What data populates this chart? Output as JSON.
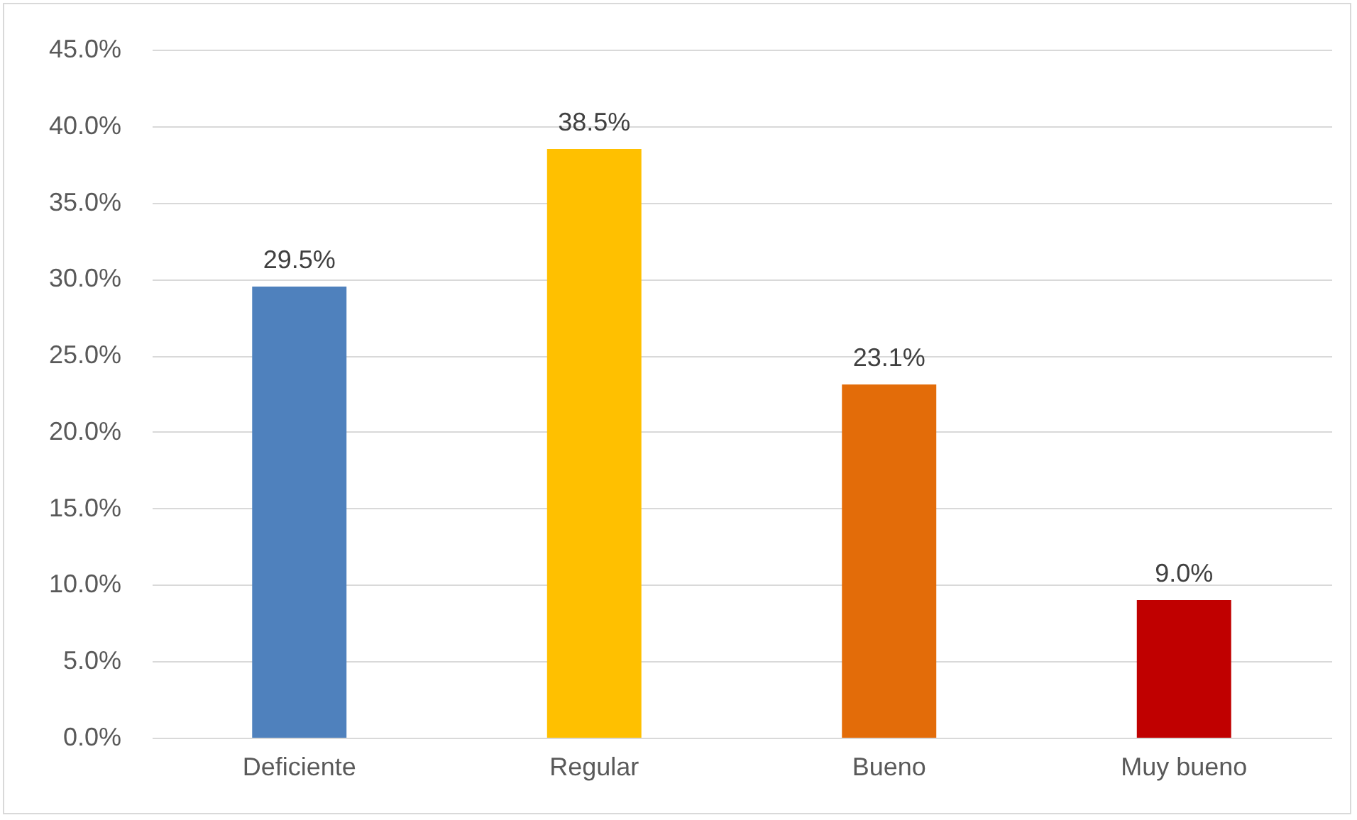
{
  "chart_data": {
    "type": "bar",
    "categories": [
      "Deficiente",
      "Regular",
      "Bueno",
      "Muy bueno"
    ],
    "values": [
      29.5,
      38.5,
      23.1,
      9.0
    ],
    "colors": [
      "#4f81bd",
      "#ffc000",
      "#e36c09",
      "#c00000"
    ],
    "value_labels": [
      "29.5%",
      "38.5%",
      "23.1%",
      "9.0%"
    ],
    "ylim": [
      0,
      45
    ],
    "yticks": [
      {
        "value": 0,
        "label": "0.0%"
      },
      {
        "value": 5,
        "label": "5.0%"
      },
      {
        "value": 10,
        "label": "10.0%"
      },
      {
        "value": 15,
        "label": "15.0%"
      },
      {
        "value": 20,
        "label": "20.0%"
      },
      {
        "value": 25,
        "label": "25.0%"
      },
      {
        "value": 30,
        "label": "30.0%"
      },
      {
        "value": 35,
        "label": "35.0%"
      },
      {
        "value": 40,
        "label": "40.0%"
      },
      {
        "value": 45,
        "label": "45.0%"
      }
    ],
    "grid": "y",
    "legend": false
  }
}
